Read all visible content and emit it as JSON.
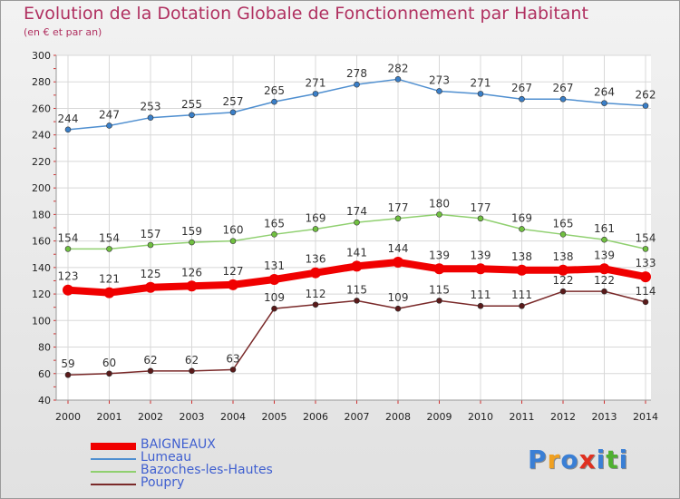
{
  "title": "Evolution de la Dotation Globale de Fonctionnement par Habitant",
  "subtitle": "(en € et par an)",
  "logo": {
    "text": "Proxiti",
    "colors": [
      "#3a7fd5",
      "#f0a020",
      "#3a7fd5",
      "#e03020",
      "#3a7fd5",
      "#50b030",
      "#3a7fd5"
    ]
  },
  "chart_data": {
    "type": "line",
    "title": "Evolution de la Dotation Globale de Fonctionnement par Habitant",
    "subtitle": "(en € et par an)",
    "xlabel": "",
    "ylabel": "",
    "ylim": [
      40,
      300
    ],
    "yticks": [
      40,
      60,
      80,
      100,
      120,
      140,
      160,
      180,
      200,
      220,
      240,
      260,
      280,
      300
    ],
    "categories": [
      "2000",
      "2001",
      "2002",
      "2003",
      "2004",
      "2005",
      "2006",
      "2007",
      "2008",
      "2009",
      "2010",
      "2011",
      "2012",
      "2013",
      "2014"
    ],
    "legend_position": "bottom-left",
    "grid": true,
    "series": [
      {
        "name": "Lumeau",
        "color": "#4f8fd0",
        "marker": "#3a7fc8",
        "width": 1.5,
        "values": [
          244,
          247,
          253,
          255,
          257,
          265,
          271,
          278,
          282,
          273,
          271,
          267,
          267,
          264,
          262
        ]
      },
      {
        "name": "Bazoches-les-Hautes",
        "color": "#90d070",
        "marker": "#70c040",
        "width": 1.5,
        "values": [
          154,
          154,
          157,
          159,
          160,
          165,
          169,
          174,
          177,
          180,
          177,
          169,
          165,
          161,
          154
        ]
      },
      {
        "name": "BAIGNEAUX",
        "color": "#f00000",
        "marker": "#f00000",
        "width": 8,
        "values": [
          123,
          121,
          125,
          126,
          127,
          131,
          136,
          141,
          144,
          139,
          139,
          138,
          138,
          139,
          133
        ]
      },
      {
        "name": "Poupry",
        "color": "#7a2a2a",
        "marker": "#5a1a1a",
        "width": 1.5,
        "values": [
          59,
          60,
          62,
          62,
          63,
          109,
          112,
          115,
          109,
          115,
          111,
          111,
          122,
          122,
          114
        ]
      }
    ]
  },
  "legend": [
    {
      "label": "BAIGNEAUX",
      "color": "#f00000",
      "thickness": 8
    },
    {
      "label": "Lumeau",
      "color": "#4f8fd0",
      "thickness": 2
    },
    {
      "label": "Bazoches-les-Hautes",
      "color": "#90d070",
      "thickness": 2
    },
    {
      "label": "Poupry",
      "color": "#7a2a2a",
      "thickness": 2
    }
  ]
}
